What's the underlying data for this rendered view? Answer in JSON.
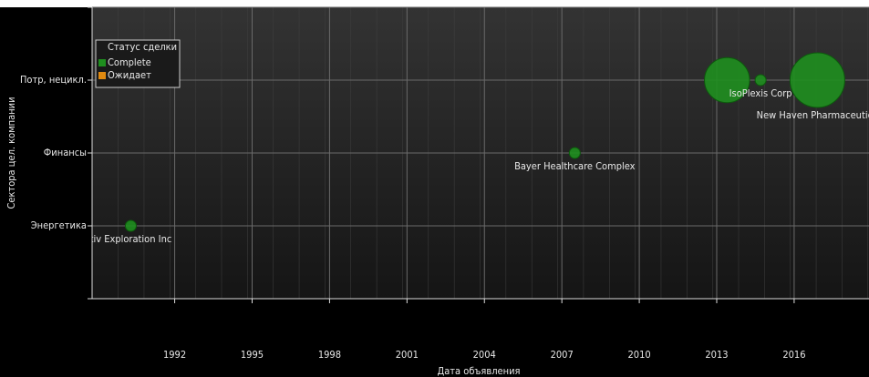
{
  "chart_data": {
    "type": "scatter",
    "x_label": "Дата объявления",
    "y_label": "Сектора цел. компании",
    "categories": [
      null,
      "Энергетика",
      "Финансы",
      "Потр, нецикл.",
      null
    ],
    "xlim": [
      1988.8,
      2018.9
    ],
    "xticks": [
      1992,
      1995,
      1998,
      2001,
      2004,
      2007,
      2010,
      2013,
      2016
    ],
    "grid": true,
    "legend_title": "Статус сделки",
    "legend": "top-left",
    "series": [
      {
        "name": "Complete",
        "color": "#1f8f1f",
        "x": [
          1990.3,
          2007.5,
          2013.4,
          2014.7,
          2016.9
        ],
        "y": [
          "Энергетика",
          "Финансы",
          "Потр, нецикл.",
          "Потр, нецикл.",
          "Потр, нецикл."
        ],
        "sizes": [
          1,
          1,
          17,
          1,
          25
        ],
        "labels": [
          "tiv Exploration Inc",
          "Bayer Healthcare Complex",
          null,
          "IsoPlexis Corp",
          "New Haven Pharmaceutica"
        ]
      },
      {
        "name": "Ожидает",
        "color": "#e08a10",
        "x": [],
        "y": [],
        "sizes": []
      }
    ]
  }
}
